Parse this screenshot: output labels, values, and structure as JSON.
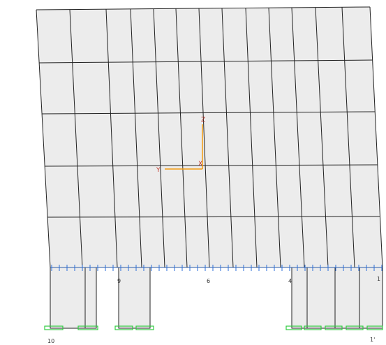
{
  "axis_labels": {
    "z": "Z",
    "y": "Y",
    "x": "X"
  },
  "node_labels": [
    "9",
    "6",
    "4",
    "1",
    "10",
    "1'"
  ]
}
